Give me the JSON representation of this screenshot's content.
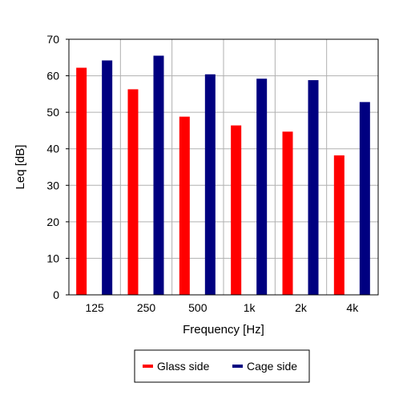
{
  "chart_data": {
    "type": "bar",
    "title": "",
    "xlabel": "Frequency [Hz]",
    "ylabel": "Leq [dB]",
    "categories": [
      "125",
      "250",
      "500",
      "1k",
      "2k",
      "4k"
    ],
    "series": [
      {
        "name": "Glass side",
        "color": "#ff0000",
        "values": [
          62.2,
          56.3,
          48.8,
          46.4,
          44.7,
          38.2
        ]
      },
      {
        "name": "Cage side",
        "color": "#000080",
        "values": [
          64.2,
          65.5,
          60.4,
          59.2,
          58.8,
          52.8
        ]
      }
    ],
    "ylim": [
      0,
      70
    ],
    "yticks": [
      "0",
      "10",
      "20",
      "30",
      "40",
      "50",
      "60",
      "70"
    ],
    "grid": true,
    "legend_position": "bottom"
  }
}
